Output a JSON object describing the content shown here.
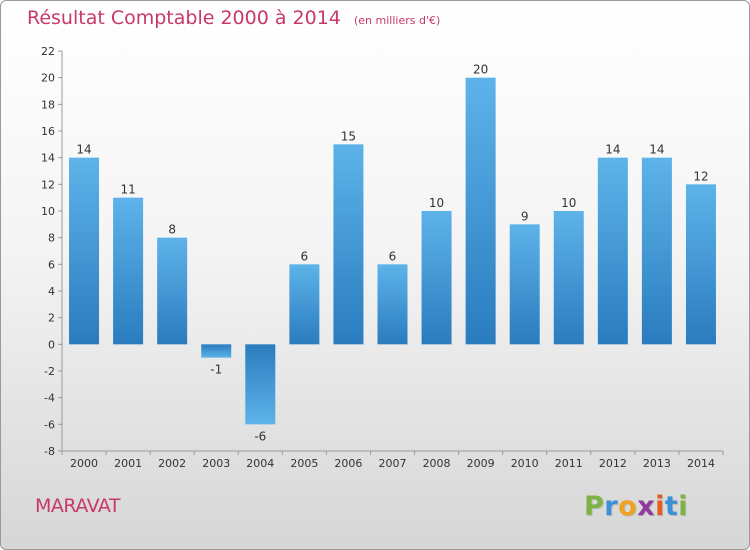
{
  "chart_data": {
    "type": "bar",
    "title": "Résultat Comptable 2000 à 2014",
    "subtitle": "(en milliers d'€)",
    "categories": [
      "2000",
      "2001",
      "2002",
      "2003",
      "2004",
      "2005",
      "2006",
      "2007",
      "2008",
      "2009",
      "2010",
      "2011",
      "2012",
      "2013",
      "2014"
    ],
    "values": [
      14,
      11,
      8,
      -1,
      -6,
      6,
      15,
      6,
      10,
      20,
      9,
      10,
      14,
      14,
      12
    ],
    "ylim": [
      -8,
      22
    ],
    "yticks": [
      -8,
      -6,
      -4,
      -2,
      0,
      2,
      4,
      6,
      8,
      10,
      12,
      14,
      16,
      18,
      20,
      22
    ],
    "grid": false,
    "bar_color_light": "#5aafe6",
    "bar_color_dark": "#2b7dbf"
  },
  "footer": {
    "commune": "MARAVAT",
    "logo_letters": [
      "P",
      "r",
      "o",
      "x",
      "i",
      "t",
      "i"
    ],
    "logo_colors": [
      "#7cb342",
      "#3d8fd6",
      "#f0a21f",
      "#8e3a9e",
      "#e35d1e",
      "#3d8fd6",
      "#7cb342"
    ]
  }
}
